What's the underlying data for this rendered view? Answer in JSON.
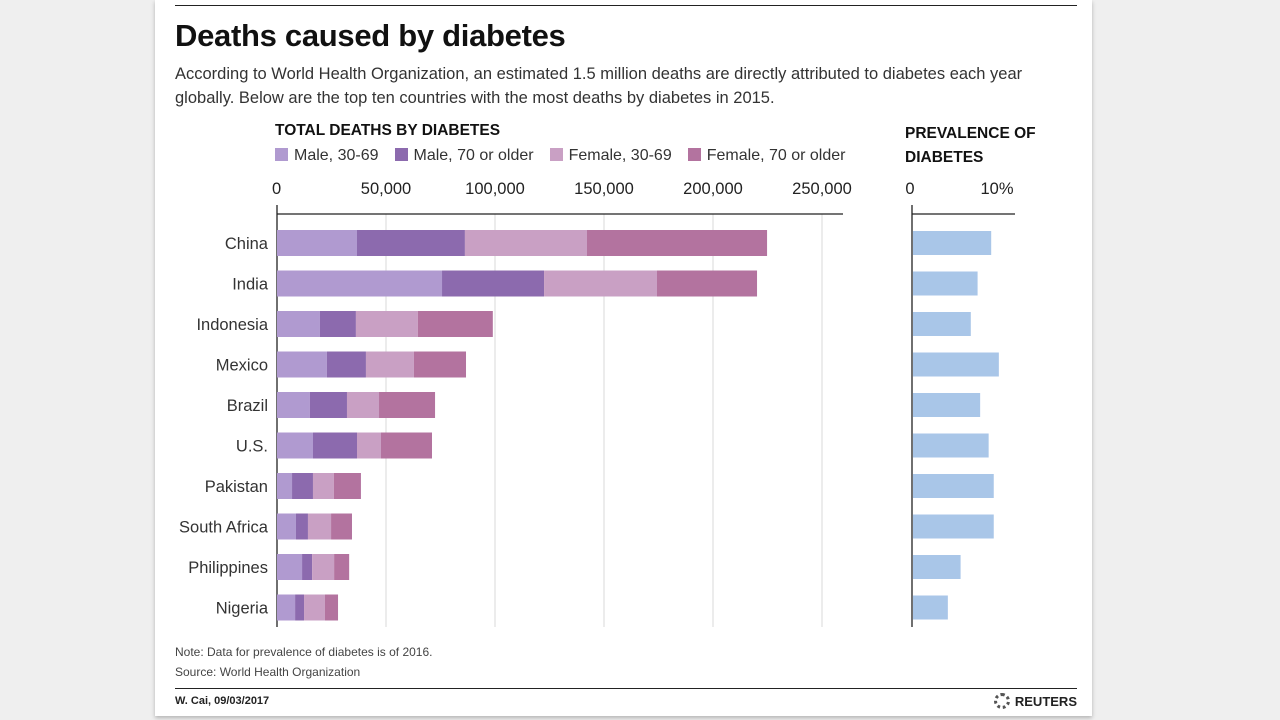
{
  "title": "Deaths caused by diabetes",
  "subtitle_lines": [
    "According to World Health Organization, an estimated 1.5 million deaths are directly attributed to diabetes each year",
    "globally. Below are the top ten countries with the most deaths by diabetes in 2015."
  ],
  "notes": [
    "Note: Data for prevalence of diabetes is of 2016.",
    "Source: World Health Organization"
  ],
  "footer": {
    "credit": "W. Cai, 09/03/2017",
    "brand": "REUTERS"
  },
  "chart_data": [
    {
      "type": "bar",
      "orientation": "horizontal",
      "stacked": true,
      "title": "TOTAL DEATHS BY DIABETES",
      "categories": [
        "China",
        "India",
        "Indonesia",
        "Mexico",
        "Brazil",
        "U.S.",
        "Pakistan",
        "South Africa",
        "Philippines",
        "Nigeria"
      ],
      "series": [
        {
          "name": "Male, 30-69",
          "color": "#b09ad0",
          "values": [
            36700,
            75700,
            19700,
            22900,
            15100,
            16500,
            6900,
            8700,
            11500,
            8300
          ]
        },
        {
          "name": "Male, 70 or older",
          "color": "#8c6aae",
          "values": [
            49500,
            46800,
            16500,
            17900,
            17000,
            20200,
            9600,
            5500,
            4600,
            4100
          ]
        },
        {
          "name": "Female, 30-69",
          "color": "#c9a0c4",
          "values": [
            56000,
            51800,
            28400,
            22000,
            14700,
            11000,
            9600,
            10600,
            10100,
            9600
          ]
        },
        {
          "name": "Female, 70 or older",
          "color": "#b3739f",
          "values": [
            82600,
            45900,
            34400,
            23900,
            25700,
            23400,
            12400,
            9600,
            6900,
            6000
          ]
        }
      ],
      "xlim": [
        0,
        260000
      ],
      "xticks": [
        0,
        50000,
        100000,
        150000,
        200000,
        250000
      ],
      "xtick_labels": [
        "0",
        "50,000",
        "100,000",
        "150,000",
        "200,000",
        "250,000"
      ],
      "grid": true,
      "legend_placement": "top"
    },
    {
      "type": "bar",
      "orientation": "horizontal",
      "title_lines": [
        "PREVALENCE OF",
        "DIABETES"
      ],
      "categories": [
        "China",
        "India",
        "Indonesia",
        "Mexico",
        "Brazil",
        "U.S.",
        "Pakistan",
        "South Africa",
        "Philippines",
        "Nigeria"
      ],
      "values": [
        9.2,
        7.6,
        6.8,
        10.1,
        7.9,
        8.9,
        9.5,
        9.5,
        5.6,
        4.1
      ],
      "unit": "%",
      "color": "#a9c6e8",
      "xlim": [
        0,
        12
      ],
      "xticks": [
        0,
        10
      ],
      "xtick_labels": [
        "0",
        "10%"
      ]
    }
  ]
}
